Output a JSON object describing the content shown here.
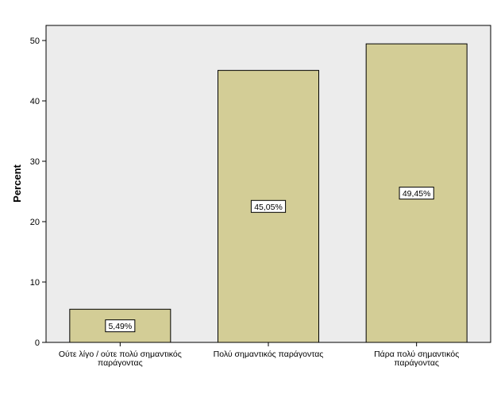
{
  "chart_data": {
    "type": "bar",
    "categories": [
      [
        "Ούτε λίγο / ούτε πολύ σημαντικός",
        "παράγοντας"
      ],
      [
        "Πολύ σημαντικός παράγοντας"
      ],
      [
        "Πάρα πολύ σημαντικός",
        "παράγοντας"
      ]
    ],
    "values": [
      5.49,
      45.05,
      49.45
    ],
    "data_labels": [
      "5,49%",
      "45,05%",
      "49,45%"
    ],
    "ylabel": "Percent",
    "ylim": [
      0,
      52.5
    ],
    "yticks": [
      0,
      10,
      20,
      30,
      40,
      50
    ],
    "plot_background": "#ececec",
    "bar_color": "#d3cd96",
    "bar_edge_color": "#000000",
    "grid": false
  }
}
